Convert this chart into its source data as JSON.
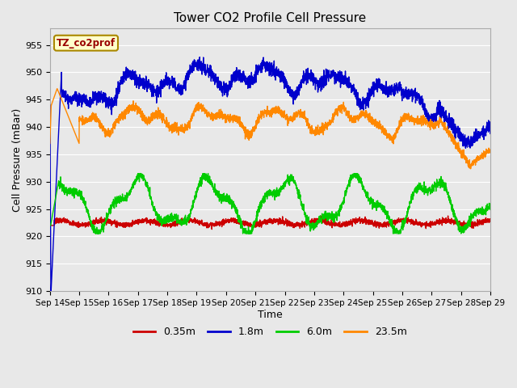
{
  "title": "Tower CO2 Profile Cell Pressure",
  "xlabel": "Time",
  "ylabel": "Cell Pressure (mBar)",
  "ylim": [
    910,
    958
  ],
  "yticks": [
    910,
    915,
    920,
    925,
    930,
    935,
    940,
    945,
    950,
    955
  ],
  "colors": {
    "0.35m": "#cc0000",
    "1.8m": "#0000cc",
    "6.0m": "#00cc00",
    "23.5m": "#ff8800"
  },
  "legend_label": "TZ_co2prof",
  "legend_box_color": "#ffffcc",
  "legend_box_edge": "#aa8800",
  "fig_bg": "#e8e8e8",
  "plot_bg": "#e8e8e8",
  "grid_color": "#ffffff",
  "series_labels": [
    "0.35m",
    "1.8m",
    "6.0m",
    "23.5m"
  ],
  "tick_labels": [
    "Sep 14",
    "Sep 15",
    "Sep 16",
    "Sep 17",
    "Sep 18",
    "Sep 19",
    "Sep 20",
    "Sep 21",
    "Sep 22",
    "Sep 23",
    "Sep 24",
    "Sep 25",
    "Sep 26",
    "Sep 27",
    "Sep 28",
    "Sep 29"
  ]
}
